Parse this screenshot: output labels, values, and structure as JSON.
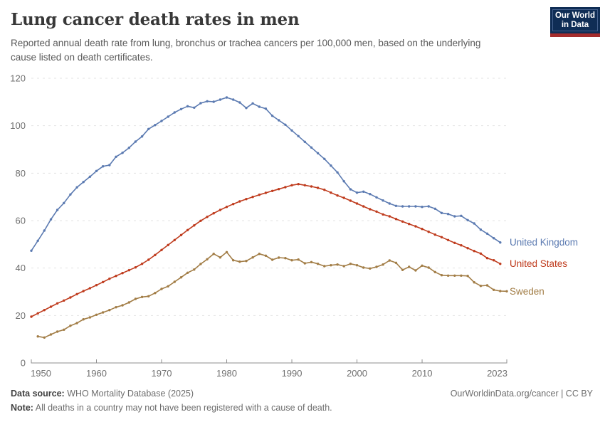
{
  "header": {
    "title": "Lung cancer death rates in men",
    "subtitle": "Reported annual death rate from lung, bronchus or trachea cancers per 100,000 men, based on the underlying cause listed on death certificates."
  },
  "logo": {
    "line1": "Our World",
    "line2": "in Data",
    "bg_color": "#0f2d55",
    "bar_color": "#a52c2c"
  },
  "footer": {
    "data_source_label": "Data source:",
    "data_source_value": " WHO Mortality Database (2025)",
    "note_label": "Note:",
    "note_value": " All deaths in a country may not have been registered with a cause of death.",
    "link": "OurWorldinData.org/cancer | CC BY"
  },
  "chart_data": {
    "type": "line",
    "title": "Lung cancer death rates in men",
    "xlim": [
      1950,
      2023
    ],
    "ylim": [
      0,
      120
    ],
    "yticks": [
      0,
      20,
      40,
      60,
      80,
      100,
      120
    ],
    "xticks": [
      "1950",
      "1960",
      "1970",
      "1980",
      "1990",
      "2000",
      "2010",
      "2023"
    ],
    "xtick_years": [
      1950,
      1960,
      1970,
      1980,
      1990,
      2000,
      2010,
      2023
    ],
    "grid": "dashed-horizontal",
    "legend_position": "right-of-line-end",
    "series": [
      {
        "name": "United Kingdom",
        "color": "#5b7ab1",
        "start_year": 1950,
        "end_year": 2022,
        "values": [
          47.3,
          51.5,
          55.8,
          60.5,
          64.5,
          67.4,
          71.0,
          74.0,
          76.3,
          78.5,
          80.9,
          82.9,
          83.4,
          86.9,
          88.6,
          90.7,
          93.3,
          95.5,
          98.6,
          100.3,
          102.0,
          103.8,
          105.6,
          107.0,
          108.2,
          107.6,
          109.5,
          110.3,
          110.1,
          111.0,
          111.9,
          111.0,
          109.8,
          107.5,
          109.4,
          108.0,
          107.2,
          104.2,
          102.3,
          100.4,
          98.0,
          95.6,
          93.2,
          90.8,
          88.4,
          86.0,
          83.2,
          80.3,
          76.6,
          73.2,
          71.8,
          72.2,
          71.2,
          69.8,
          68.5,
          67.2,
          66.2,
          66.0,
          66.0,
          66.0,
          65.8,
          66.0,
          65.0,
          63.2,
          62.8,
          61.8,
          62.0,
          60.2,
          58.8,
          56.2,
          54.5,
          52.6,
          50.8
        ]
      },
      {
        "name": "United States",
        "color": "#bf3b1d",
        "start_year": 1950,
        "end_year": 2022,
        "values": [
          19.5,
          20.9,
          22.3,
          23.7,
          25.1,
          26.3,
          27.6,
          29.0,
          30.3,
          31.5,
          32.8,
          34.1,
          35.5,
          36.7,
          37.9,
          39.1,
          40.3,
          41.8,
          43.5,
          45.5,
          47.6,
          49.7,
          51.8,
          53.9,
          56.0,
          58.0,
          59.9,
          61.6,
          63.1,
          64.5,
          65.8,
          67.0,
          68.1,
          69.1,
          70.0,
          70.9,
          71.7,
          72.5,
          73.3,
          74.1,
          74.9,
          75.4,
          74.9,
          74.4,
          73.8,
          73.0,
          71.8,
          70.6,
          69.6,
          68.4,
          67.2,
          66.0,
          64.8,
          63.8,
          62.6,
          61.8,
          60.7,
          59.6,
          58.6,
          57.6,
          56.5,
          55.3,
          54.1,
          53.0,
          51.8,
          50.6,
          49.6,
          48.4,
          47.2,
          46.1,
          44.2,
          43.3,
          41.8
        ]
      },
      {
        "name": "Sweden",
        "color": "#a27d46",
        "start_year": 1951,
        "end_year": 2023,
        "values": [
          11.2,
          10.7,
          12.0,
          13.2,
          14.0,
          15.7,
          16.8,
          18.4,
          19.2,
          20.3,
          21.3,
          22.3,
          23.5,
          24.3,
          25.5,
          27.0,
          27.8,
          28.1,
          29.5,
          31.2,
          32.3,
          34.2,
          36.1,
          38.0,
          39.4,
          41.7,
          43.7,
          46.0,
          44.5,
          46.7,
          43.3,
          42.7,
          43.0,
          44.5,
          46.0,
          45.2,
          43.5,
          44.4,
          44.2,
          43.3,
          43.6,
          42.0,
          42.5,
          41.8,
          40.8,
          41.2,
          41.5,
          40.8,
          41.8,
          41.2,
          40.2,
          39.8,
          40.5,
          41.5,
          43.2,
          42.2,
          39.2,
          40.5,
          39.0,
          41.0,
          40.2,
          38.3,
          37.0,
          36.8,
          36.8,
          36.8,
          36.7,
          34.0,
          32.5,
          32.7,
          30.8,
          30.3,
          30.2
        ]
      }
    ]
  }
}
